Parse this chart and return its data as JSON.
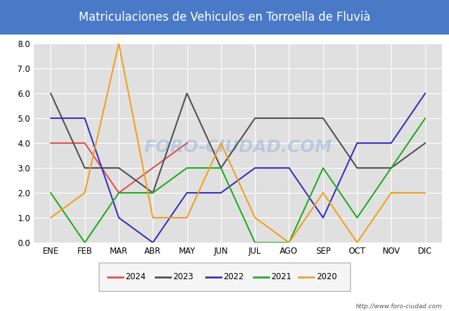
{
  "title": "Matriculaciones de Vehiculos en Torroella de Fluvià",
  "months": [
    "ENE",
    "FEB",
    "MAR",
    "ABR",
    "MAY",
    "JUN",
    "JUL",
    "AGO",
    "SEP",
    "OCT",
    "NOV",
    "DIC"
  ],
  "series": {
    "2024": [
      4,
      4,
      2,
      3,
      4,
      null,
      null,
      null,
      null,
      null,
      null,
      null
    ],
    "2023": [
      6,
      3,
      3,
      2,
      6,
      3,
      5,
      5,
      5,
      3,
      3,
      4
    ],
    "2022": [
      5,
      5,
      1,
      0,
      2,
      2,
      3,
      3,
      1,
      4,
      4,
      6
    ],
    "2021": [
      2,
      0,
      2,
      2,
      3,
      3,
      0,
      0,
      3,
      1,
      3,
      5
    ],
    "2020": [
      1,
      2,
      8,
      1,
      1,
      4,
      1,
      0,
      2,
      0,
      2,
      2
    ]
  },
  "colors": {
    "2024": "#e05050",
    "2023": "#505050",
    "2022": "#3333bb",
    "2021": "#22aa22",
    "2020": "#f0a020"
  },
  "ylim": [
    0.0,
    8.0
  ],
  "yticks": [
    0.0,
    1.0,
    2.0,
    3.0,
    4.0,
    5.0,
    6.0,
    7.0,
    8.0
  ],
  "title_fontsize": 12,
  "title_bg_color": "#4a7ac7",
  "title_text_color": "#ffffff",
  "plot_bg_color": "#e0e0e0",
  "grid_color": "#ffffff",
  "watermark": "FORO-CIUDAD.COM",
  "url": "http://www.foro-ciudad.com",
  "legend_order": [
    "2024",
    "2023",
    "2022",
    "2021",
    "2020"
  ]
}
